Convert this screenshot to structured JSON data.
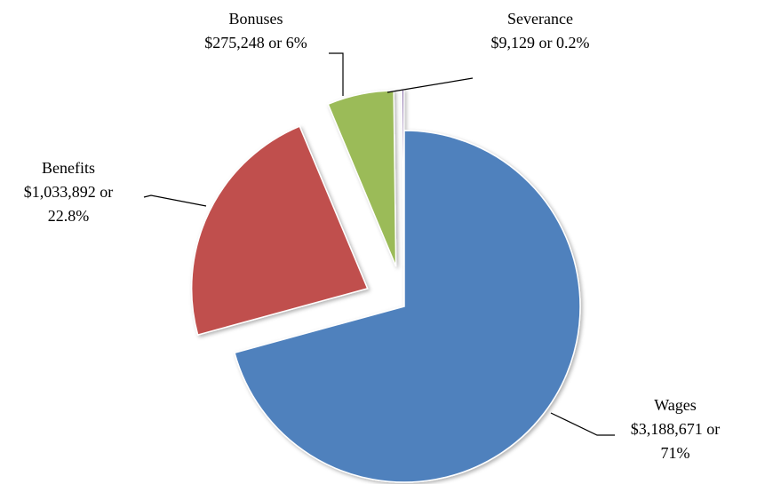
{
  "chart_data": {
    "type": "pie",
    "categories": [
      "Wages",
      "Benefits",
      "Bonuses",
      "Severance"
    ],
    "values": [
      3188671,
      1033892,
      275248,
      9129
    ],
    "value_labels": [
      "$3,188,671 or 71%",
      "$1,033,892 or 22.8%",
      "$275,248 or 6%",
      "$9,129 or 0.2%"
    ],
    "colors": [
      "#4f81bd",
      "#c0504d",
      "#9bbb59",
      "#8064a2"
    ]
  }
}
